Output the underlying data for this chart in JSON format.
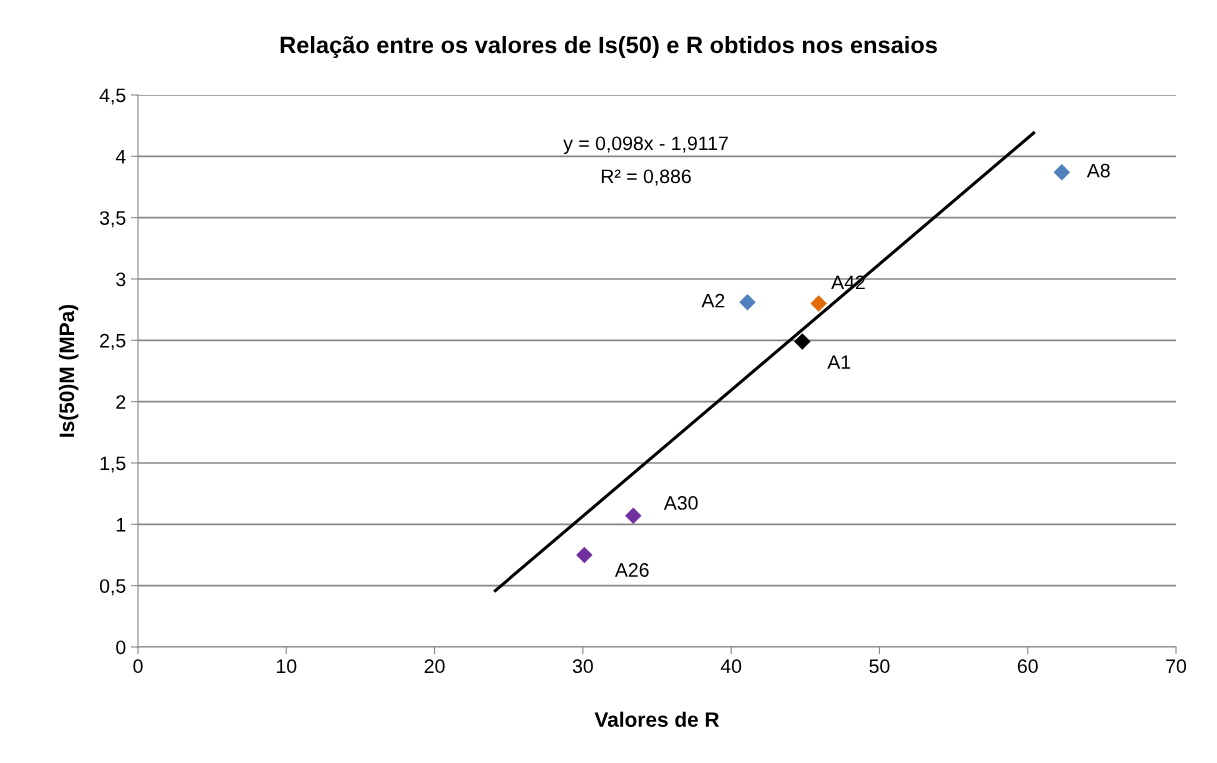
{
  "chart_data": {
    "type": "scatter",
    "title": "Relação entre os valores de Is(50) e R obtidos nos ensaios",
    "xlabel": "Valores de R",
    "ylabel": "Is(50)M (MPa)",
    "series": [
      {
        "marker": "diamond",
        "x": [
          62.3,
          41.1,
          45.9,
          44.8,
          33.4,
          30.1
        ],
        "values": [
          3.87,
          2.81,
          2.8,
          2.49,
          1.07,
          0.75
        ],
        "colors": [
          "#4f81bd",
          "#4f81bd",
          "#e36c09",
          "#000000",
          "#7030a0",
          "#7030a0"
        ]
      },
      {
        "type": "line",
        "x": [
          24.1,
          60.4
        ],
        "values": [
          0.46,
          4.19
        ],
        "color": "#000000",
        "marker": "none"
      }
    ],
    "annotations": [
      "y = 0,098x - 1,9117",
      "R² = 0,886",
      {
        "text": "A8",
        "x": 62.3,
        "y": 3.87
      },
      {
        "text": "A2",
        "x": 41.1,
        "y": 2.81
      },
      {
        "text": "A42",
        "x": 45.9,
        "y": 2.8
      },
      {
        "text": "A1",
        "x": 44.8,
        "y": 2.49
      },
      {
        "text": "A30",
        "x": 33.4,
        "y": 1.07
      },
      {
        "text": "A26",
        "x": 30.1,
        "y": 0.75
      }
    ],
    "xlim": [
      0,
      70
    ],
    "xticks": [
      0,
      10,
      20,
      30,
      40,
      50,
      60,
      70
    ],
    "ylim": [
      0,
      4.5
    ],
    "yticks": [
      {
        "value": 0,
        "label": "0"
      },
      {
        "value": 0.5,
        "label": "0,5"
      },
      {
        "value": 1,
        "label": "1"
      },
      {
        "value": 1.5,
        "label": "1,5"
      },
      {
        "value": 2,
        "label": "2"
      },
      {
        "value": 2.5,
        "label": "2,5"
      },
      {
        "value": 3,
        "label": "3"
      },
      {
        "value": 3.5,
        "label": "3,5"
      },
      {
        "value": 4,
        "label": "4"
      },
      {
        "value": 4.5,
        "label": "4,5"
      }
    ],
    "grid": "y"
  }
}
